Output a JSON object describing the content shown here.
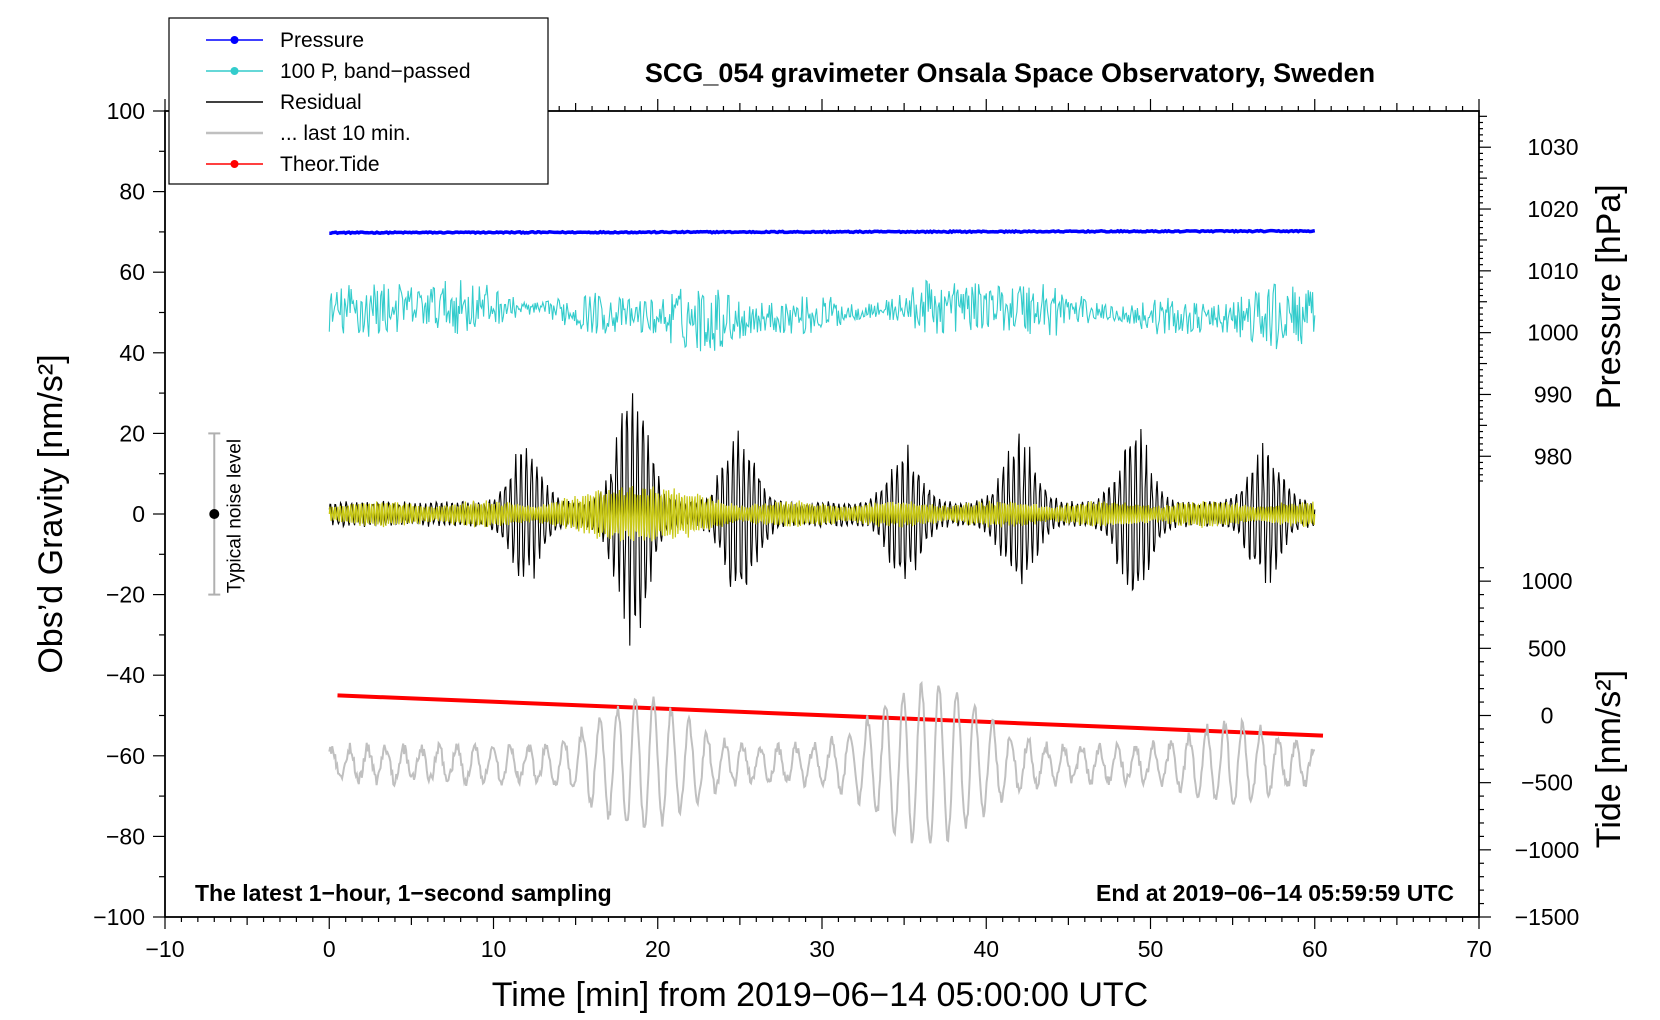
{
  "chart_data": {
    "type": "line",
    "title": "SCG_054 gravimeter Onsala Space Observatory, Sweden",
    "xlabel": "Time [min] from 2019−06−14 05:00:00 UTC",
    "ylabel_left": "Obs’d Gravity [nm/s²]",
    "ylabel_right_pressure": "Pressure [hPa]",
    "ylabel_right_tide": "Tide [nm/s²]",
    "xlim": [
      -10,
      70
    ],
    "ylim": [
      -100,
      100
    ],
    "x_ticks": [
      "−10",
      "0",
      "10",
      "20",
      "30",
      "40",
      "50",
      "60",
      "70"
    ],
    "y_ticks_left": [
      "−100",
      "−80",
      "−60",
      "−40",
      "−20",
      "0",
      "20",
      "40",
      "60",
      "80",
      "100"
    ],
    "pressure_axis": {
      "ticks": [
        "980",
        "990",
        "1000",
        "1010",
        "1020",
        "1030"
      ],
      "ref_value": 1000,
      "ref_gravity": 45,
      "hpa_per_gravity_unit": 0.652
    },
    "tide_axis": {
      "ticks": [
        "−1500",
        "−1000",
        "−500",
        "0",
        "500",
        "1000"
      ],
      "ref_value": 0,
      "ref_gravity": -50,
      "tide_per_gravity_unit": 30
    },
    "footer_left": "The latest 1−hour, 1−second sampling",
    "footer_right": "End at 2019−06−14 05:59:59 UTC",
    "noise_bar": {
      "label": "Typical noise level",
      "x": -7,
      "center": 0,
      "low": -20,
      "high": 20
    },
    "legend": [
      {
        "name": "Pressure",
        "color": "#0000ff",
        "marker": true
      },
      {
        "name": "100 P, band−passed",
        "color": "#33cccc",
        "marker": true
      },
      {
        "name": "Residual",
        "color": "#000000",
        "marker": false
      },
      {
        "name": "... last 10 min.",
        "color": "#c0c0c0",
        "marker": false
      },
      {
        "name": "Theor.Tide",
        "color": "#ff0000",
        "marker": true
      }
    ],
    "series": [
      {
        "name": "Pressure",
        "color": "#0000ff",
        "x_range": [
          0,
          60
        ],
        "level_start": 69.8,
        "level_end": 70.2,
        "noise_amplitude": 0.3
      },
      {
        "name": "100 P, band−passed",
        "color": "#33cccc",
        "x_range": [
          0,
          60
        ],
        "mean": 50,
        "amplitude_range": [
          -15,
          11
        ]
      },
      {
        "name": "Residual",
        "color": "#000000",
        "x_range": [
          0,
          60
        ],
        "mean": 0,
        "peak_positive": 35,
        "peak_negative": -33,
        "burst_minutes": [
          12,
          18.5,
          25,
          35,
          42,
          49,
          57
        ]
      },
      {
        "name": "Residual (yellow overlay)",
        "color": "#c8c814",
        "x_range": [
          0,
          60
        ],
        "mean": 0,
        "amplitude_range": [
          -8,
          8
        ]
      },
      {
        "name": "Theor.Tide",
        "color": "#ff0000",
        "x": [
          0.5,
          60.5
        ],
        "y": [
          -45,
          -55
        ]
      },
      {
        "name": "... last 10 min.",
        "color": "#c0c0c0",
        "x_range": [
          0,
          60
        ],
        "mean": -62,
        "amplitude_range": [
          -22,
          20
        ]
      }
    ]
  }
}
